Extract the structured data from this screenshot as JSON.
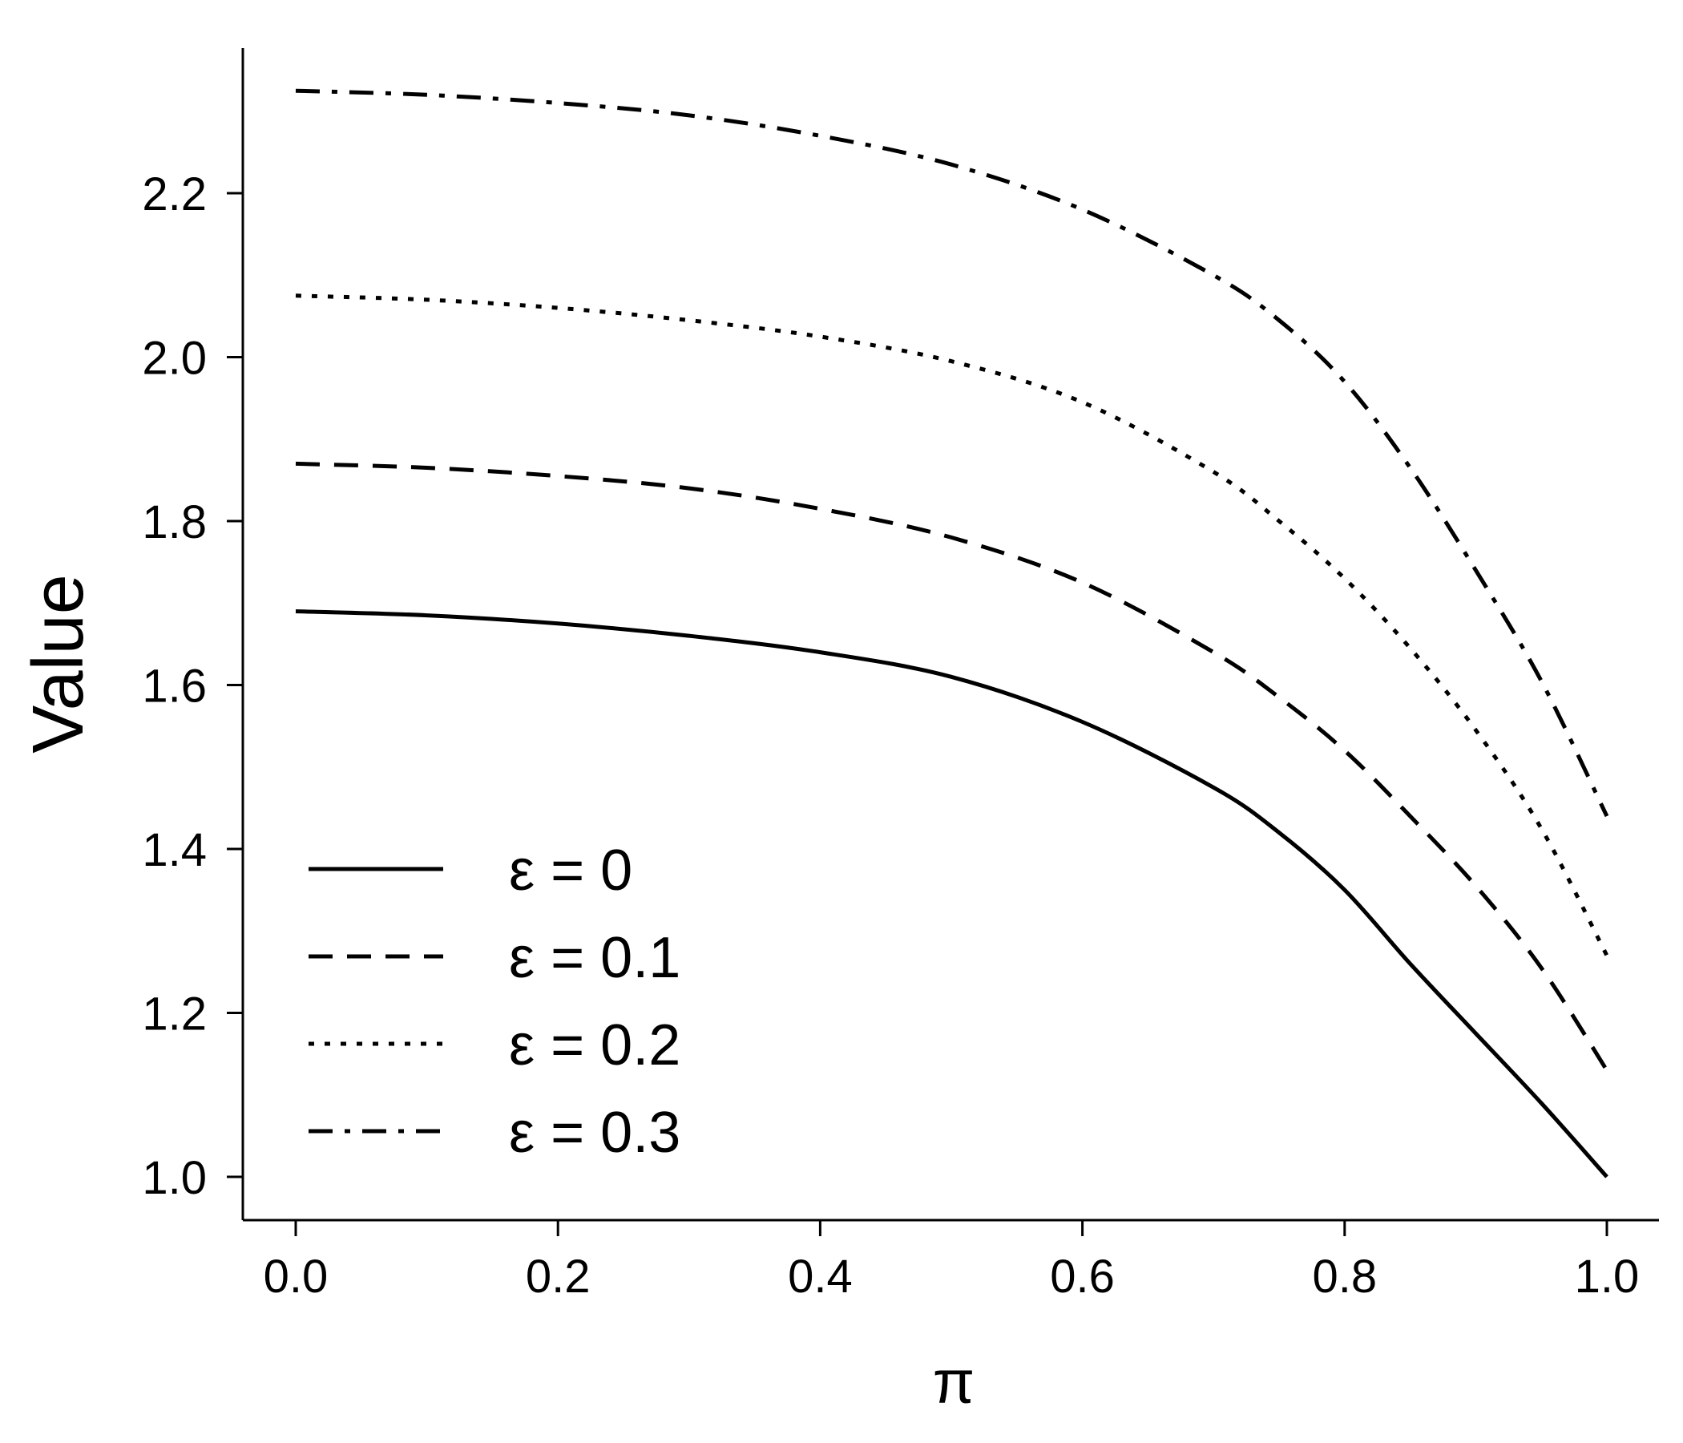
{
  "chart_data": {
    "type": "line",
    "title": "",
    "xlabel": "π",
    "ylabel": "Value",
    "xlim": [
      -0.04,
      1.04
    ],
    "ylim": [
      0.95,
      2.38
    ],
    "xticks": [
      "0.0",
      "0.2",
      "0.4",
      "0.6",
      "0.8",
      "1.0"
    ],
    "yticks": [
      "1.0",
      "1.2",
      "1.4",
      "1.6",
      "1.8",
      "2.0",
      "2.2"
    ],
    "grid": false,
    "legend_position": "bottom-left",
    "series": [
      {
        "name": "ε = 0",
        "line_style": "solid",
        "x": [
          0.0,
          0.1,
          0.2,
          0.3,
          0.4,
          0.5,
          0.6,
          0.7,
          0.75,
          0.8,
          0.85,
          0.9,
          0.95,
          1.0
        ],
        "y": [
          1.69,
          1.685,
          1.675,
          1.66,
          1.64,
          1.61,
          1.555,
          1.475,
          1.42,
          1.35,
          1.26,
          1.175,
          1.09,
          1.0
        ]
      },
      {
        "name": "ε = 0.1",
        "line_style": "dashed",
        "x": [
          0.0,
          0.1,
          0.2,
          0.3,
          0.4,
          0.5,
          0.6,
          0.7,
          0.75,
          0.8,
          0.85,
          0.9,
          0.95,
          1.0
        ],
        "y": [
          1.87,
          1.865,
          1.855,
          1.84,
          1.815,
          1.78,
          1.725,
          1.64,
          1.585,
          1.52,
          1.44,
          1.355,
          1.255,
          1.13
        ]
      },
      {
        "name": "ε = 0.2",
        "line_style": "dotted",
        "x": [
          0.0,
          0.1,
          0.2,
          0.3,
          0.4,
          0.5,
          0.6,
          0.7,
          0.75,
          0.8,
          0.85,
          0.9,
          0.95,
          1.0
        ],
        "y": [
          2.075,
          2.07,
          2.06,
          2.045,
          2.025,
          1.995,
          1.945,
          1.86,
          1.8,
          1.73,
          1.645,
          1.545,
          1.425,
          1.27
        ]
      },
      {
        "name": "ε = 0.3",
        "line_style": "dash-dot",
        "x": [
          0.0,
          0.1,
          0.2,
          0.3,
          0.4,
          0.5,
          0.6,
          0.7,
          0.75,
          0.8,
          0.85,
          0.9,
          0.95,
          1.0
        ],
        "y": [
          2.325,
          2.32,
          2.31,
          2.295,
          2.27,
          2.235,
          2.18,
          2.1,
          2.045,
          1.97,
          1.865,
          1.74,
          1.605,
          1.44
        ]
      }
    ]
  }
}
